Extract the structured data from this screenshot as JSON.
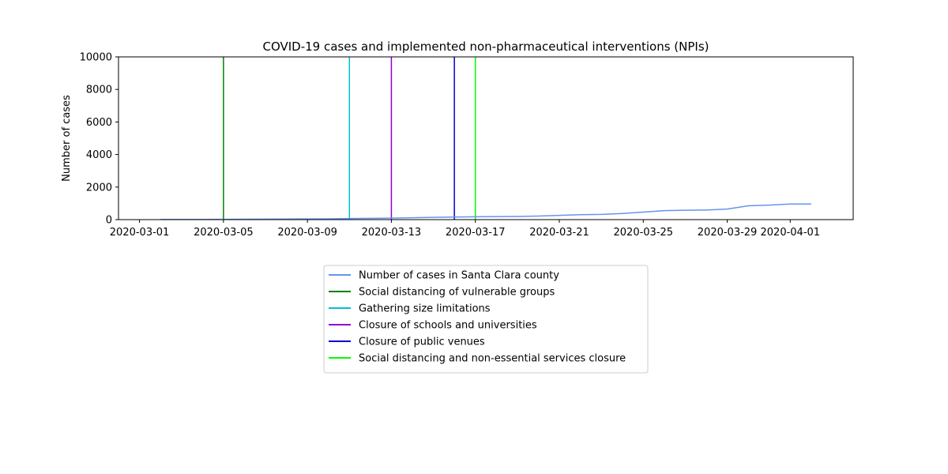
{
  "chart_data": {
    "type": "line",
    "title": "COVID-19 cases and implemented non-pharmaceutical interventions (NPIs)",
    "xlabel": "",
    "ylabel": "Number of cases",
    "xlim": [
      "2020-02-29",
      "2020-04-04"
    ],
    "ylim": [
      0,
      10000
    ],
    "grid": false,
    "legend_position": "below-center",
    "x_ticks": [
      "2020-03-01",
      "2020-03-05",
      "2020-03-09",
      "2020-03-13",
      "2020-03-17",
      "2020-03-21",
      "2020-03-25",
      "2020-03-29",
      "2020-04-01"
    ],
    "y_ticks": [
      0,
      2000,
      4000,
      6000,
      8000,
      10000
    ],
    "series": [
      {
        "name": "Number of cases in Santa Clara county",
        "color": "#6495ED",
        "x": [
          "2020-03-02",
          "2020-03-03",
          "2020-03-04",
          "2020-03-05",
          "2020-03-06",
          "2020-03-07",
          "2020-03-08",
          "2020-03-09",
          "2020-03-10",
          "2020-03-11",
          "2020-03-12",
          "2020-03-13",
          "2020-03-14",
          "2020-03-15",
          "2020-03-16",
          "2020-03-17",
          "2020-03-18",
          "2020-03-19",
          "2020-03-20",
          "2020-03-21",
          "2020-03-22",
          "2020-03-23",
          "2020-03-24",
          "2020-03-25",
          "2020-03-26",
          "2020-03-27",
          "2020-03-28",
          "2020-03-29",
          "2020-03-30",
          "2020-03-31",
          "2020-04-01",
          "2020-04-02"
        ],
        "values": [
          9,
          11,
          14,
          20,
          24,
          32,
          38,
          43,
          48,
          66,
          79,
          91,
          114,
          138,
          155,
          175,
          189,
          196,
          220,
          263,
          302,
          321,
          375,
          459,
          550,
          574,
          591,
          647,
          848,
          890,
          956,
          956
        ]
      }
    ],
    "vlines": [
      {
        "name": "Social distancing of vulnerable groups",
        "x": "2020-03-05",
        "color": "#008000"
      },
      {
        "name": "Gathering size limitations",
        "x": "2020-03-11",
        "color": "#00BFD8"
      },
      {
        "name": "Closure of schools and universities",
        "x": "2020-03-13",
        "color": "#9400D3"
      },
      {
        "name": "Closure of public venues",
        "x": "2020-03-16",
        "color": "#0000CD"
      },
      {
        "name": "Social distancing and non-essential services closure",
        "x": "2020-03-17",
        "color": "#00FF00"
      }
    ]
  }
}
